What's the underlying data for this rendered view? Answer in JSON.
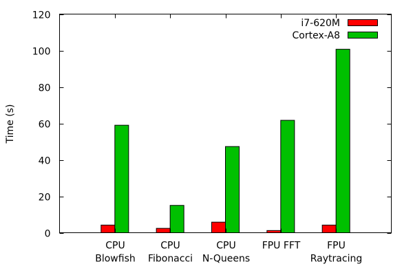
{
  "chart_data": {
    "type": "bar",
    "title": "",
    "xlabel": "",
    "ylabel": "Time (s)",
    "ylim": [
      0,
      120
    ],
    "yticks": [
      0,
      20,
      40,
      60,
      80,
      100,
      120
    ],
    "grid": false,
    "legend_position": "top-right",
    "categories": [
      [
        "CPU",
        "Blowfish"
      ],
      [
        "CPU",
        "Fibonacci"
      ],
      [
        "CPU",
        "N-Queens"
      ],
      [
        "FPU FFT"
      ],
      [
        "FPU",
        "Raytracing"
      ]
    ],
    "series": [
      {
        "name": "i7-620M",
        "color": "#ff0000",
        "values": [
          4.2,
          2.4,
          5.8,
          1.2,
          4.2
        ]
      },
      {
        "name": "Cortex-A8",
        "color": "#00c000",
        "values": [
          59,
          15,
          47.3,
          61.7,
          100.7
        ]
      }
    ]
  }
}
